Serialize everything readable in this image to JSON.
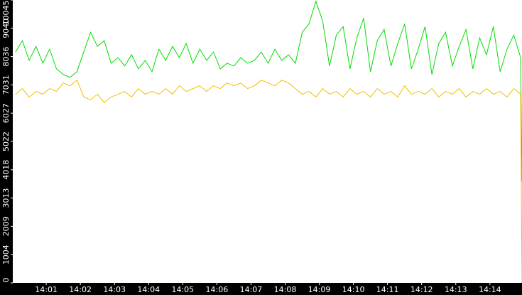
{
  "chart_data": {
    "type": "line",
    "x": [
      0.1,
      0.3,
      0.5,
      0.7,
      0.9,
      1.1,
      1.3,
      1.5,
      1.7,
      1.9,
      2.1,
      2.3,
      2.5,
      2.7,
      2.9,
      3.1,
      3.3,
      3.5,
      3.7,
      3.9,
      4.1,
      4.3,
      4.5,
      4.7,
      4.9,
      5.1,
      5.3,
      5.5,
      5.7,
      5.9,
      6.1,
      6.3,
      6.5,
      6.7,
      6.9,
      7.1,
      7.3,
      7.5,
      7.7,
      7.9,
      8.1,
      8.3,
      8.5,
      8.7,
      8.9,
      9.1,
      9.3,
      9.5,
      9.7,
      9.9,
      10.1,
      10.3,
      10.5,
      10.7,
      10.9,
      11.1,
      11.3,
      11.5,
      11.7,
      11.9,
      12.1,
      12.3,
      12.5,
      12.7,
      12.9,
      13.1,
      13.3,
      13.5,
      13.7,
      13.9,
      14.1,
      14.3,
      14.5,
      14.7,
      14.9,
      14.94
    ],
    "series": [
      {
        "color": "#00dd00",
        "values": [
          8200,
          8600,
          7900,
          8400,
          7800,
          8300,
          7600,
          7400,
          7300,
          7500,
          8200,
          8900,
          8400,
          8600,
          7800,
          8000,
          7700,
          8100,
          7600,
          7900,
          7500,
          8300,
          7900,
          8400,
          8000,
          8500,
          7800,
          8300,
          7900,
          8200,
          7600,
          7800,
          7700,
          8000,
          7800,
          7900,
          8200,
          7800,
          8300,
          7900,
          8100,
          7800,
          8900,
          9200,
          10000,
          9300,
          7700,
          8800,
          9100,
          7600,
          8700,
          9400,
          7500,
          8600,
          9000,
          7700,
          8500,
          9200,
          7600,
          8300,
          9100,
          7400,
          8500,
          8900,
          7700,
          8400,
          9000,
          7600,
          8700,
          8100,
          9100,
          7500,
          8300,
          8800,
          8000,
          3600
        ]
      },
      {
        "color": "#f0c000",
        "values": [
          6700,
          6900,
          6600,
          6800,
          6700,
          6900,
          6800,
          7100,
          7000,
          7200,
          6600,
          6500,
          6700,
          6400,
          6600,
          6700,
          6800,
          6600,
          6900,
          6700,
          6800,
          6700,
          6900,
          6700,
          7000,
          6800,
          6900,
          7000,
          6800,
          7000,
          6900,
          7100,
          7000,
          7100,
          6900,
          7000,
          7200,
          7100,
          7000,
          7200,
          7100,
          6900,
          6700,
          6800,
          6600,
          6900,
          6700,
          6800,
          6600,
          6900,
          6700,
          6800,
          6600,
          6900,
          6700,
          6800,
          6600,
          7000,
          6700,
          6800,
          6700,
          6900,
          6600,
          6800,
          6700,
          6900,
          6600,
          6800,
          6700,
          6900,
          6700,
          6800,
          6600,
          6900,
          6700,
          0
        ]
      }
    ],
    "xlim": [
      0.02,
      14.94
    ],
    "xticks": [
      {
        "value": 1,
        "label": "14:01"
      },
      {
        "value": 2,
        "label": "14:02"
      },
      {
        "value": 3,
        "label": "14:03"
      },
      {
        "value": 4,
        "label": "14:04"
      },
      {
        "value": 5,
        "label": "14:05"
      },
      {
        "value": 6,
        "label": "14:06"
      },
      {
        "value": 7,
        "label": "14:07"
      },
      {
        "value": 8,
        "label": "14:08"
      },
      {
        "value": 9,
        "label": "14:09"
      },
      {
        "value": 10,
        "label": "14:10"
      },
      {
        "value": 11,
        "label": "14:11"
      },
      {
        "value": 12,
        "label": "14:12"
      },
      {
        "value": 13,
        "label": "14:13"
      },
      {
        "value": 14,
        "label": "14:14"
      }
    ],
    "ylim": [
      0,
      10045
    ],
    "yticks": [
      0,
      1004,
      2009,
      3013,
      4018,
      5022,
      6027,
      7031,
      8036,
      9040,
      10045
    ],
    "background": "#ffffff"
  }
}
